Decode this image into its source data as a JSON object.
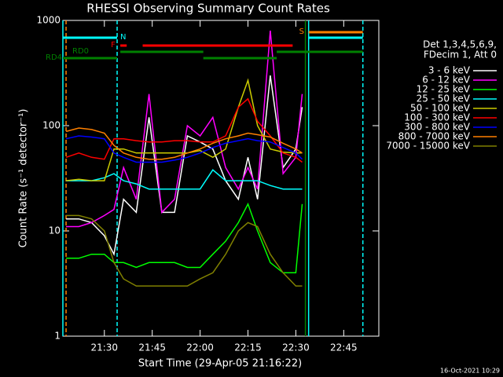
{
  "chart_data": {
    "type": "line",
    "title": "RHESSI Observing Summary Count Rates",
    "xlabel": "Start Time (29-Apr-05 21:16:22)",
    "ylabel": "Count Rate (s⁻¹ detector⁻¹)",
    "footer": "16-Oct-2021 10:29",
    "legend_header": [
      "Det 1,3,4,5,6,9,",
      "FDecim 1, Att 0"
    ],
    "log_y": true,
    "xlim": [
      "21:17",
      "22:56"
    ],
    "xticks": [
      "21:30",
      "21:45",
      "22:00",
      "22:15",
      "22:30",
      "22:45"
    ],
    "ylim": [
      1,
      1000
    ],
    "yticks": [
      1,
      10,
      100,
      1000
    ],
    "x": [
      "21:18",
      "21:22",
      "21:26",
      "21:30",
      "21:33",
      "21:36",
      "21:40",
      "21:44",
      "21:48",
      "21:52",
      "21:56",
      "22:00",
      "22:04",
      "22:08",
      "22:12",
      "22:15",
      "22:18",
      "22:22",
      "22:26",
      "22:30",
      "22:32"
    ],
    "series": [
      {
        "name": "3 - 6 keV",
        "color": "#ffffff",
        "values": [
          13,
          13,
          12,
          9,
          6,
          20,
          15,
          120,
          15,
          15,
          80,
          70,
          60,
          30,
          20,
          50,
          20,
          300,
          40,
          60,
          150
        ]
      },
      {
        "name": "6 - 12 keV",
        "color": "#ff00ff",
        "values": [
          11,
          11,
          12,
          14,
          16,
          40,
          20,
          200,
          15,
          20,
          100,
          80,
          120,
          40,
          25,
          40,
          25,
          800,
          35,
          50,
          200
        ]
      },
      {
        "name": "12 - 25 keV",
        "color": "#00ff00",
        "values": [
          5.5,
          5.5,
          6,
          6,
          5,
          5,
          4.5,
          5,
          5,
          5,
          4.5,
          4.5,
          6,
          8,
          12,
          18,
          10,
          5,
          4,
          4,
          18
        ]
      },
      {
        "name": "25 - 50 keV",
        "color": "#00ffff",
        "values": [
          30,
          30,
          30,
          32,
          35,
          30,
          28,
          25,
          25,
          25,
          25,
          25,
          38,
          30,
          30,
          30,
          30,
          27,
          25,
          25,
          25
        ]
      },
      {
        "name": "50 - 100 keV",
        "color": "#cccc00",
        "values": [
          30,
          31,
          30,
          30,
          60,
          60,
          55,
          55,
          55,
          55,
          55,
          58,
          50,
          60,
          150,
          270,
          100,
          60,
          56,
          55,
          55
        ]
      },
      {
        "name": "100 - 300 keV",
        "color": "#ff0000",
        "values": [
          50,
          55,
          50,
          48,
          75,
          75,
          72,
          70,
          70,
          72,
          72,
          70,
          70,
          80,
          150,
          180,
          110,
          80,
          55,
          50,
          45
        ]
      },
      {
        "name": "300 - 800 keV",
        "color": "#0000ff",
        "values": [
          75,
          80,
          78,
          75,
          55,
          50,
          45,
          45,
          45,
          47,
          50,
          55,
          62,
          68,
          72,
          75,
          72,
          70,
          62,
          55,
          48
        ]
      },
      {
        "name": "800 - 7000 keV",
        "color": "#ff8000",
        "values": [
          88,
          95,
          92,
          85,
          65,
          55,
          50,
          48,
          48,
          50,
          55,
          60,
          68,
          75,
          80,
          85,
          82,
          78,
          68,
          60,
          55
        ]
      },
      {
        "name": "7000 - 15000 keV",
        "color": "#808000",
        "values": [
          14,
          14,
          13,
          10,
          5,
          3.5,
          3,
          3,
          3,
          3,
          3,
          3.5,
          4,
          6,
          10,
          12,
          11,
          6,
          4,
          3,
          3
        ]
      }
    ],
    "flags": [
      {
        "name": "S",
        "color": "#ff8000",
        "segments": [
          [
            "22:34",
            "22:51"
          ]
        ]
      },
      {
        "name": "N",
        "color": "#00ffff",
        "segments": [
          [
            "21:17",
            "21:34"
          ],
          [
            "22:34",
            "22:51"
          ]
        ]
      },
      {
        "name": "F",
        "color": "#ff0000",
        "segments": [
          [
            "21:35",
            "21:37"
          ],
          [
            "21:42",
            "22:29"
          ]
        ]
      },
      {
        "name": "RD0",
        "color": "#008000",
        "segments": [
          [
            "21:35",
            "22:01"
          ],
          [
            "22:24",
            "22:51"
          ]
        ]
      },
      {
        "name": "RD4",
        "color": "#008000",
        "segments": [
          [
            "21:17",
            "21:34"
          ],
          [
            "22:01",
            "22:24"
          ]
        ]
      }
    ],
    "vlines": [
      {
        "x": "21:17",
        "color": "#00ffff",
        "dash": false
      },
      {
        "x": "21:18",
        "color": "#ff8000",
        "dash": true
      },
      {
        "x": "21:34",
        "color": "#00ffff",
        "dash": true
      },
      {
        "x": "22:33",
        "color": "#008000",
        "dash": false
      },
      {
        "x": "22:34",
        "color": "#00ffff",
        "dash": false
      },
      {
        "x": "22:51",
        "color": "#00ffff",
        "dash": true
      }
    ]
  }
}
